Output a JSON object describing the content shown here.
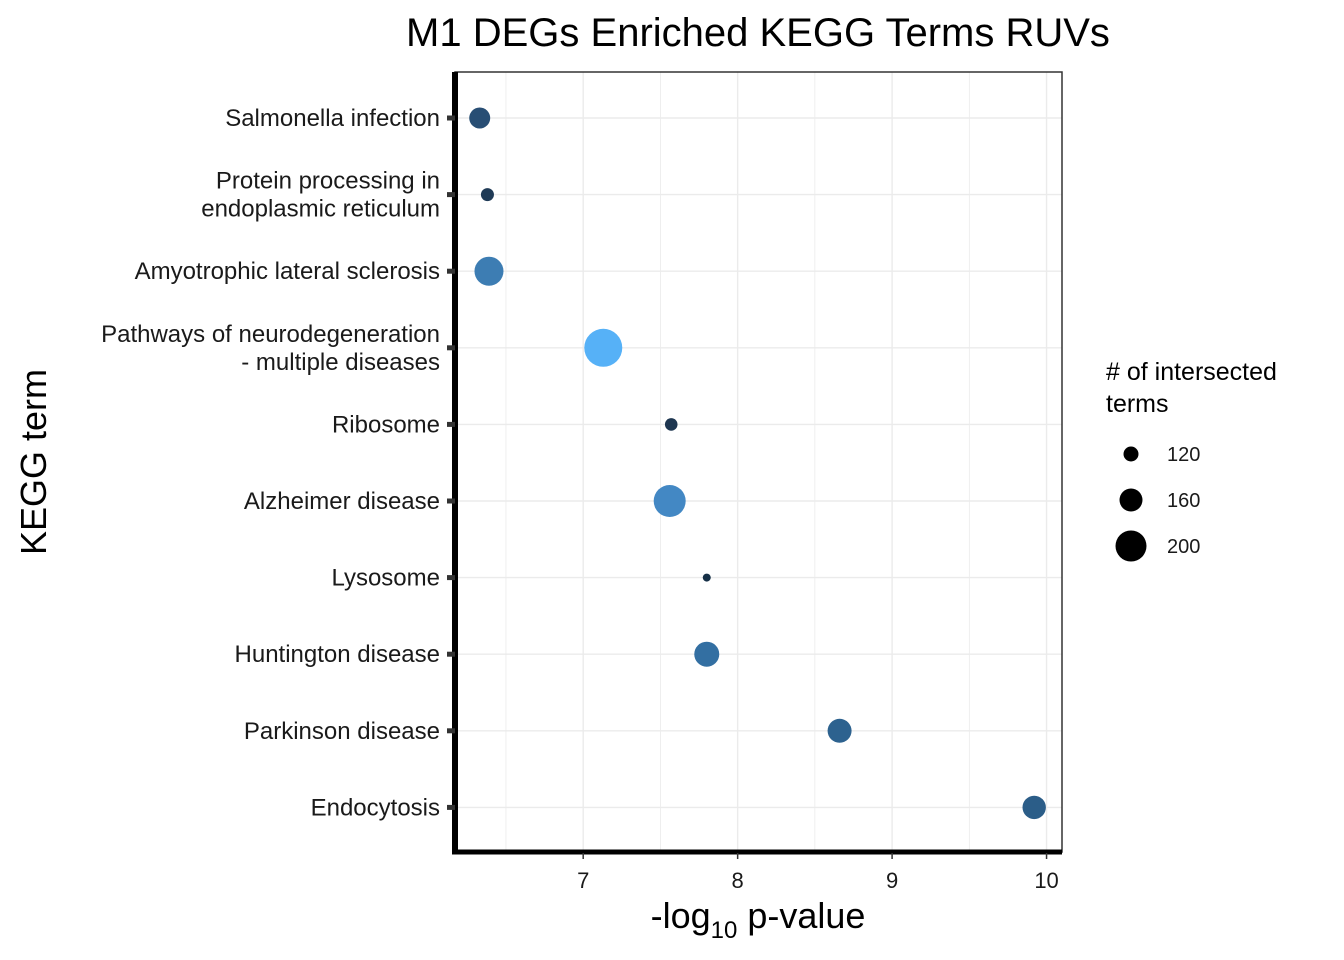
{
  "chart_data": {
    "type": "scatter",
    "title": "M1 DEGs Enriched KEGG Terms RUVs",
    "xlabel_prefix": "-log",
    "xlabel_sub": "10",
    "xlabel_suffix": " p-value",
    "ylabel": "KEGG term",
    "xlim": [
      6.17,
      10.1
    ],
    "x_ticks": [
      "7",
      "8",
      "9",
      "10"
    ],
    "grid": true,
    "legend": {
      "position": "right",
      "title_lines": [
        "# of intersected",
        " terms"
      ],
      "entries": [
        {
          "label": "120",
          "size": 120
        },
        {
          "label": "160",
          "size": 160
        },
        {
          "label": "200",
          "size": 200
        }
      ]
    },
    "points": [
      {
        "term_lines": [
          "Salmonella infection"
        ],
        "x": 6.33,
        "size": 150,
        "color": "#284e74"
      },
      {
        "term_lines": [
          "Protein processing in",
          "endoplasmic reticulum"
        ],
        "x": 6.38,
        "size": 110,
        "color": "#1f3a56"
      },
      {
        "term_lines": [
          "Amyotrophic lateral sclerosis"
        ],
        "x": 6.39,
        "size": 190,
        "color": "#3d7db3"
      },
      {
        "term_lines": [
          "Pathways of neurodegeneration",
          "- multiple diseases"
        ],
        "x": 7.13,
        "size": 235,
        "color": "#56b1f7"
      },
      {
        "term_lines": [
          "Ribosome"
        ],
        "x": 7.57,
        "size": 108,
        "color": "#1e3650"
      },
      {
        "term_lines": [
          "Alzheimer disease"
        ],
        "x": 7.56,
        "size": 205,
        "color": "#4388c4"
      },
      {
        "term_lines": [
          "Lysosome"
        ],
        "x": 7.8,
        "size": 85,
        "color": "#163047"
      },
      {
        "term_lines": [
          "Huntington disease"
        ],
        "x": 7.8,
        "size": 170,
        "color": "#336fa2"
      },
      {
        "term_lines": [
          "Parkinson disease"
        ],
        "x": 8.66,
        "size": 165,
        "color": "#2d628f"
      },
      {
        "term_lines": [
          "Endocytosis"
        ],
        "x": 9.92,
        "size": 162,
        "color": "#2b5d88"
      }
    ]
  }
}
